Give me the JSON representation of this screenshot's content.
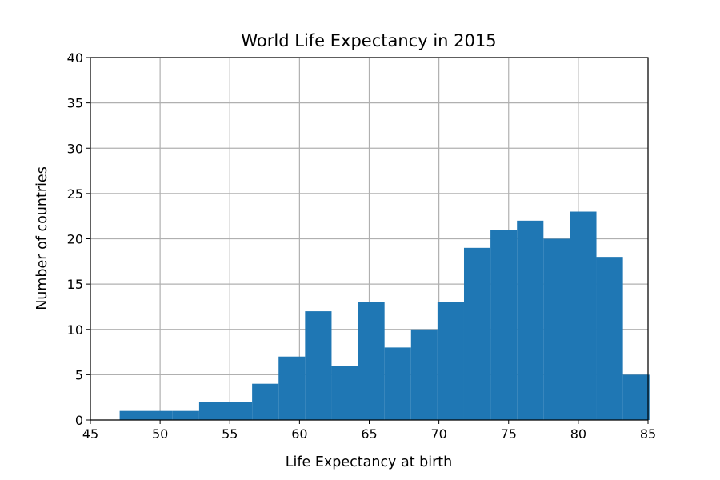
{
  "chart_data": {
    "type": "bar",
    "title": "World Life Expectancy in 2015",
    "xlabel": "Life Expectancy at birth",
    "ylabel": "Number of countries",
    "xlim": [
      45,
      85
    ],
    "ylim": [
      0,
      40
    ],
    "xticks": [
      45,
      50,
      55,
      60,
      65,
      70,
      75,
      80,
      85
    ],
    "yticks": [
      0,
      5,
      10,
      15,
      20,
      25,
      30,
      35,
      40
    ],
    "grid": true,
    "colors": {
      "bar": "#1f77b4",
      "grid": "#b0b0b0",
      "axes": "#000000"
    },
    "bins": [
      {
        "start": 47.1,
        "end": 49.0,
        "count": 1
      },
      {
        "start": 49.0,
        "end": 50.9,
        "count": 1
      },
      {
        "start": 50.9,
        "end": 52.8,
        "count": 1
      },
      {
        "start": 52.8,
        "end": 54.7,
        "count": 2
      },
      {
        "start": 54.7,
        "end": 56.6,
        "count": 2
      },
      {
        "start": 56.6,
        "end": 58.5,
        "count": 4
      },
      {
        "start": 58.5,
        "end": 60.4,
        "count": 7
      },
      {
        "start": 60.4,
        "end": 62.3,
        "count": 12
      },
      {
        "start": 62.3,
        "end": 64.2,
        "count": 6
      },
      {
        "start": 64.2,
        "end": 66.1,
        "count": 13
      },
      {
        "start": 66.1,
        "end": 68.0,
        "count": 8
      },
      {
        "start": 68.0,
        "end": 69.9,
        "count": 10
      },
      {
        "start": 69.9,
        "end": 71.8,
        "count": 13
      },
      {
        "start": 71.8,
        "end": 73.7,
        "count": 19
      },
      {
        "start": 73.7,
        "end": 75.6,
        "count": 21
      },
      {
        "start": 75.6,
        "end": 77.5,
        "count": 22
      },
      {
        "start": 77.5,
        "end": 79.4,
        "count": 20
      },
      {
        "start": 79.4,
        "end": 81.3,
        "count": 23
      },
      {
        "start": 81.3,
        "end": 83.2,
        "count": 18
      },
      {
        "start": 83.2,
        "end": 85.1,
        "count": 5
      }
    ]
  }
}
